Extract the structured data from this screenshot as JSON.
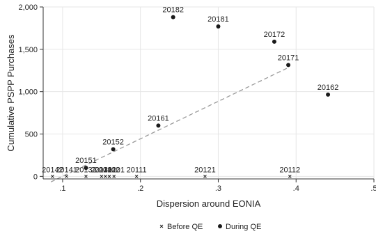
{
  "chart_data": {
    "type": "scatter",
    "xlabel": "Dispersion around EONIA",
    "ylabel": "Cumulative PSPP Purchases",
    "xlim": [
      0.075,
      0.5
    ],
    "ylim": [
      -30,
      2000
    ],
    "x_ticks": [
      {
        "value": 0.1,
        "label": ".1"
      },
      {
        "value": 0.2,
        "label": ".2"
      },
      {
        "value": 0.3,
        "label": ".3"
      },
      {
        "value": 0.4,
        "label": ".4"
      },
      {
        "value": 0.5,
        "label": ".5"
      }
    ],
    "y_ticks": [
      {
        "value": 0,
        "label": "0"
      },
      {
        "value": 500,
        "label": "500"
      },
      {
        "value": 1000,
        "label": "1,000"
      },
      {
        "value": 1500,
        "label": "1,500"
      },
      {
        "value": 2000,
        "label": "2,000"
      }
    ],
    "grid": true,
    "legend_position": "bottom",
    "series": [
      {
        "name": "Before QE",
        "marker": "x",
        "color": "#1a1a1a",
        "points": [
          {
            "label": "20142",
            "x": 0.087,
            "y": 0
          },
          {
            "label": "20141",
            "x": 0.105,
            "y": 0
          },
          {
            "label": "20132",
            "x": 0.13,
            "y": 0
          },
          {
            "label": "20131",
            "x": 0.15,
            "y": 0
          },
          {
            "label": "20122",
            "x": 0.155,
            "y": 0
          },
          {
            "label": "20102",
            "x": 0.16,
            "y": 0
          },
          {
            "label": "20101",
            "x": 0.166,
            "y": 0
          },
          {
            "label": "20111",
            "x": 0.195,
            "y": 0
          },
          {
            "label": "20121",
            "x": 0.283,
            "y": 0
          },
          {
            "label": "20112",
            "x": 0.392,
            "y": 0
          }
        ]
      },
      {
        "name": "During QE",
        "marker": "circle",
        "color": "#1a1a1a",
        "points": [
          {
            "label": "20151",
            "x": 0.13,
            "y": 100
          },
          {
            "label": "20152",
            "x": 0.165,
            "y": 320
          },
          {
            "label": "20161",
            "x": 0.223,
            "y": 600
          },
          {
            "label": "20182",
            "x": 0.242,
            "y": 1880
          },
          {
            "label": "20181",
            "x": 0.3,
            "y": 1770
          },
          {
            "label": "20172",
            "x": 0.372,
            "y": 1590
          },
          {
            "label": "20171",
            "x": 0.39,
            "y": 1315
          },
          {
            "label": "20162",
            "x": 0.441,
            "y": 965
          }
        ]
      }
    ],
    "fit_line": {
      "style": "dashed",
      "color": "#999999",
      "x": [
        0.085,
        0.388
      ],
      "y": [
        -65,
        1275
      ]
    }
  }
}
